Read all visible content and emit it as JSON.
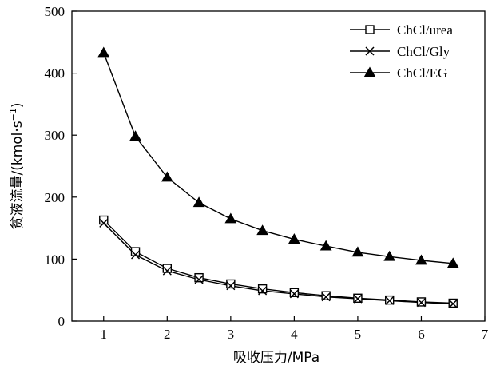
{
  "chart_data": {
    "type": "line",
    "xlabel": "吸收压力/MPa",
    "ylabel_main": "贫液流量/(kmol·s",
    "ylabel_sup": "−1",
    "ylabel_close": ")",
    "xlim": [
      0.5,
      7
    ],
    "ylim": [
      0,
      500
    ],
    "x_ticks": [
      "1",
      "2",
      "3",
      "4",
      "5",
      "6",
      "7"
    ],
    "y_ticks": [
      "0",
      "100",
      "200",
      "300",
      "400",
      "500"
    ],
    "x_tick_values": [
      1,
      2,
      3,
      4,
      5,
      6,
      7
    ],
    "y_tick_values": [
      0,
      100,
      200,
      300,
      400,
      500
    ],
    "legend_position": "top-right",
    "x": [
      1,
      1.5,
      2,
      2.5,
      3,
      3.5,
      4,
      4.5,
      5,
      5.5,
      6,
      6.5
    ],
    "series": [
      {
        "name": "ChCl/urea",
        "marker": "open-square",
        "values": [
          163,
          112,
          85,
          70,
          60,
          52,
          46,
          41,
          37,
          34,
          31,
          29
        ]
      },
      {
        "name": "ChCl/Gly",
        "marker": "cross",
        "values": [
          158,
          107,
          81,
          67,
          57,
          49,
          44,
          39,
          36,
          33,
          30,
          28
        ]
      },
      {
        "name": "ChCl/EG",
        "marker": "filled-triangle",
        "values": [
          433,
          298,
          232,
          191,
          165,
          146,
          132,
          121,
          111,
          104,
          98,
          93
        ]
      }
    ]
  }
}
